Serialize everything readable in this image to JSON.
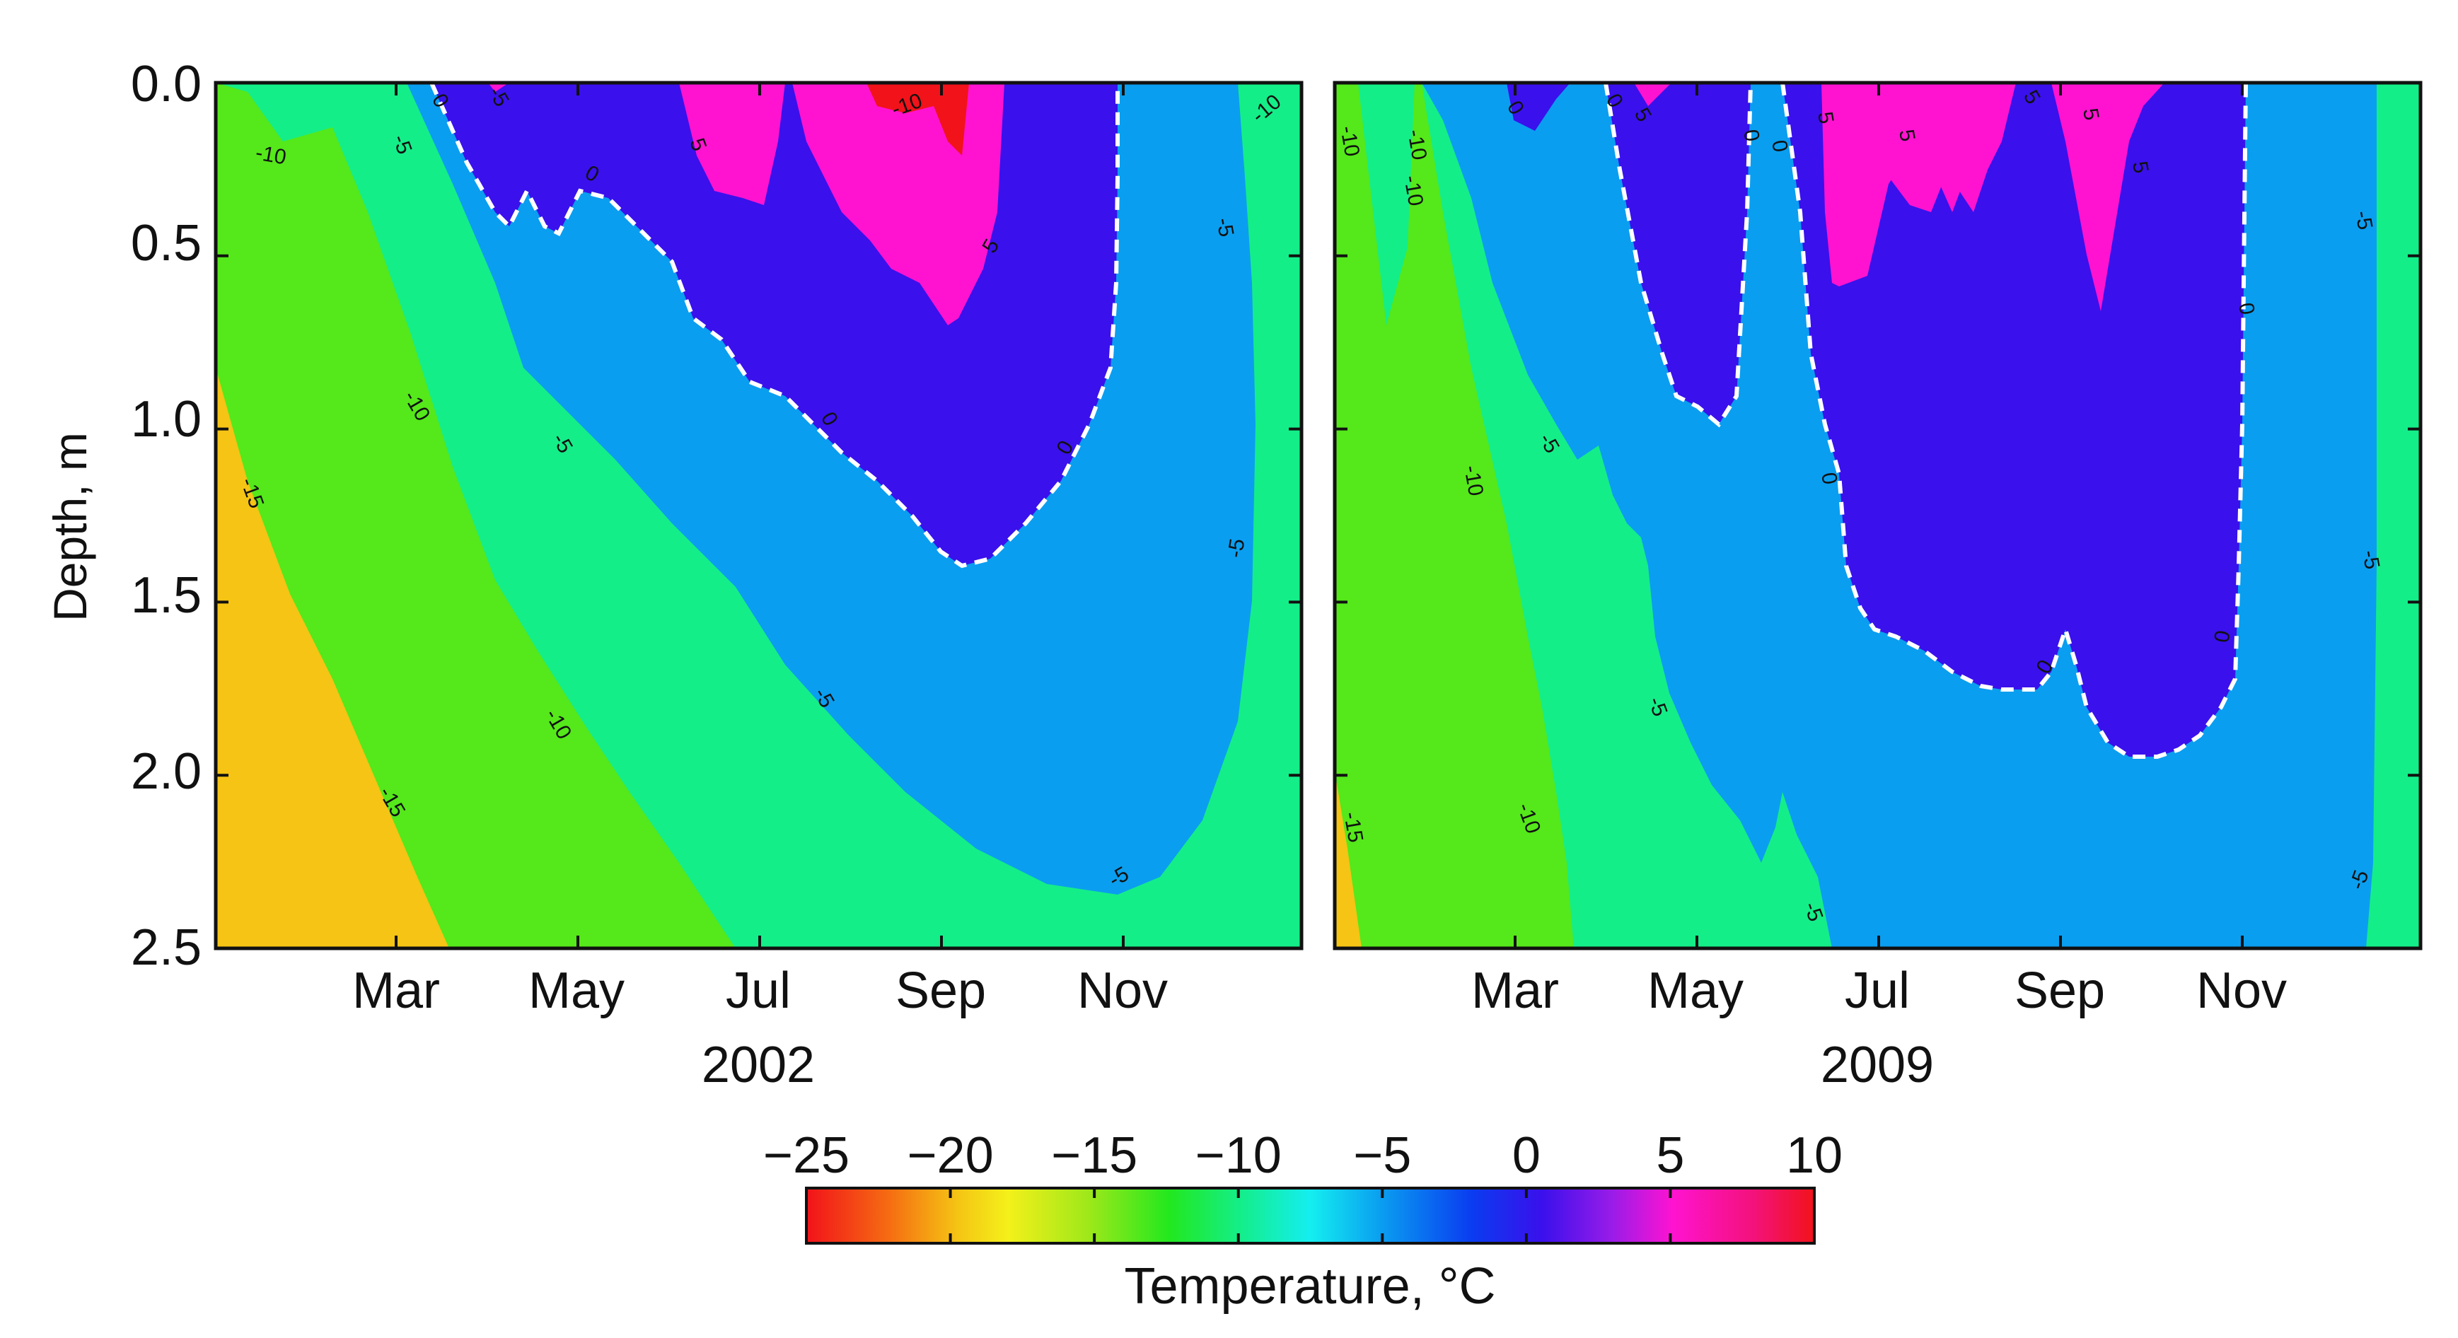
{
  "chart_data": [
    {
      "type": "heatmap",
      "title": "",
      "year": "2002",
      "xlabel": "2002",
      "ylabel": "Depth, m",
      "x_tick_labels": [
        "Mar",
        "May",
        "Jul",
        "Sep",
        "Nov"
      ],
      "y_tick_labels": [
        "0.0",
        "0.5",
        "1.0",
        "1.5",
        "2.0",
        "2.5"
      ],
      "ylim": [
        0.0,
        2.5
      ],
      "contour_labels": [
        "-10",
        "-5",
        "0",
        "-5",
        "-10",
        "0",
        "5",
        "-10",
        "-5",
        "-5",
        "0",
        "0",
        "5",
        "-15",
        "-10",
        "-5",
        "-10",
        "-15",
        "-5",
        "-5",
        "0",
        "-10"
      ],
      "zero_isotherm_depth_max": 1.43
    },
    {
      "type": "heatmap",
      "title": "",
      "year": "2009",
      "xlabel": "2009",
      "ylabel": "",
      "x_tick_labels": [
        "Mar",
        "May",
        "Jul",
        "Sep",
        "Nov"
      ],
      "y_tick_labels": [
        "0.0",
        "0.5",
        "1.0",
        "1.5",
        "2.0",
        "2.5"
      ],
      "ylim": [
        0.0,
        2.5
      ],
      "contour_labels": [
        "-10",
        "-10",
        "-10",
        "0",
        "0",
        "5",
        "0",
        "0",
        "5",
        "5",
        "5",
        "5",
        "5",
        "-5",
        "0",
        "-5",
        "-10",
        "-5",
        "0",
        "-5",
        "-10",
        "-5",
        "0",
        "-5",
        "-15",
        "0",
        "-5",
        "-5",
        "-10"
      ],
      "zero_isotherm_depth_max": 1.97
    }
  ],
  "colorbar": {
    "title": "Temperature, °C",
    "min": -25,
    "max": 10,
    "tick_labels": [
      "−25",
      "−20",
      "−15",
      "−10",
      "−5",
      "0",
      "5",
      "10"
    ],
    "ticks": [
      -25,
      -20,
      -15,
      -10,
      -5,
      0,
      5,
      10
    ]
  },
  "colors": {
    "c_minus20": "#f5c414",
    "c_minus15": "#55e81a",
    "c_minus10": "#14ee88",
    "c_minus5": "#0a9ef0",
    "c_0": "#3a10ec",
    "c_5": "#ff13d0",
    "c_10": "#f2121a",
    "zero_line": "#ffffff",
    "axis": "#111111"
  }
}
